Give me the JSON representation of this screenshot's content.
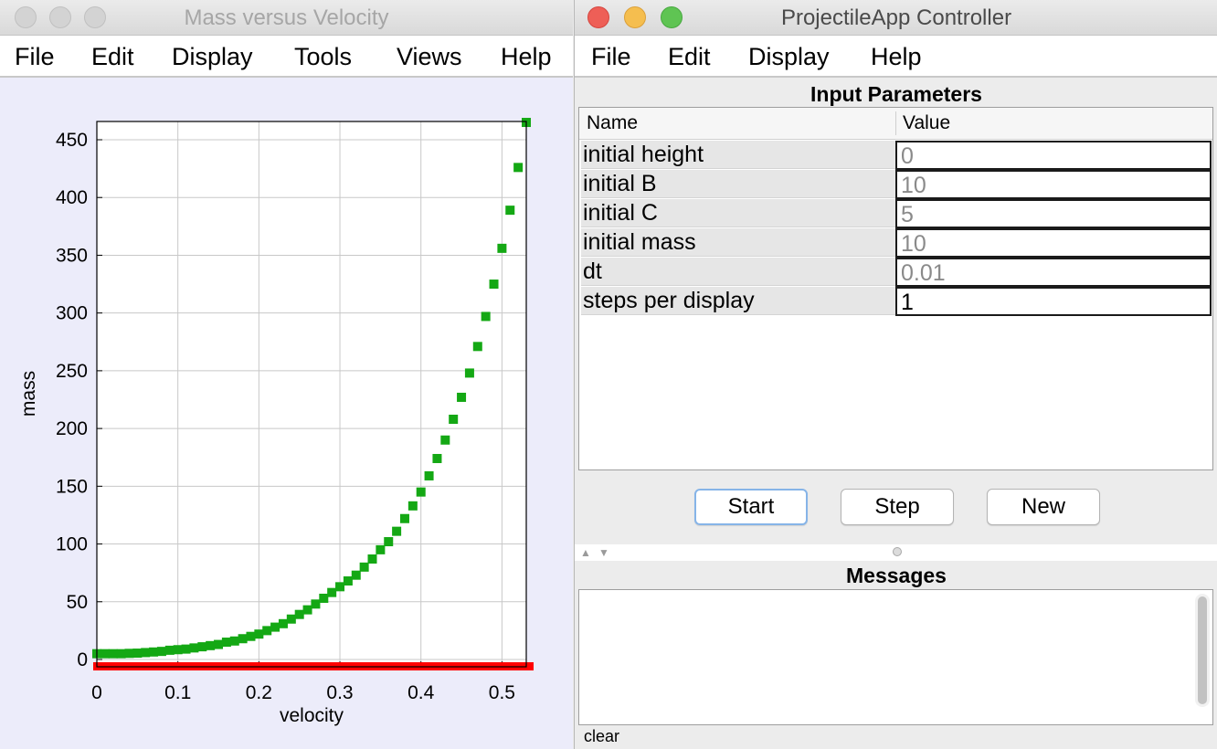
{
  "plot_window": {
    "title": "Mass versus Velocity",
    "menu": [
      "File",
      "Edit",
      "Display",
      "Tools",
      "Views",
      "Help"
    ]
  },
  "controller_window": {
    "title": "ProjectileApp Controller",
    "menu": [
      "File",
      "Edit",
      "Display",
      "Help"
    ],
    "input_panel_title": "Input Parameters",
    "table_headers": {
      "name": "Name",
      "value": "Value"
    },
    "parameters": [
      {
        "name": "initial height",
        "value": "0",
        "editable": false
      },
      {
        "name": "initial B",
        "value": "10",
        "editable": false
      },
      {
        "name": "initial C",
        "value": "5",
        "editable": false
      },
      {
        "name": "initial mass",
        "value": "10",
        "editable": false
      },
      {
        "name": "dt",
        "value": "0.01",
        "editable": false
      },
      {
        "name": "steps per display",
        "value": "1",
        "editable": true
      }
    ],
    "buttons": {
      "start": "Start",
      "step": "Step",
      "new": "New"
    },
    "messages_title": "Messages",
    "messages_text": "",
    "clear_label": "clear"
  },
  "chart_data": {
    "type": "scatter",
    "xlabel": "velocity",
    "ylabel": "mass",
    "xlim": [
      0,
      0.53
    ],
    "ylim": [
      -5,
      460
    ],
    "x_ticks": [
      0,
      0.1,
      0.2,
      0.3,
      0.4,
      0.5
    ],
    "x_tick_labels": [
      "0",
      "0.1",
      "0.2",
      "0.3",
      "0.4",
      "0.5"
    ],
    "y_ticks": [
      0,
      50,
      100,
      150,
      200,
      250,
      300,
      350,
      400,
      450
    ],
    "y_tick_labels": [
      "0",
      "50",
      "100",
      "150",
      "200",
      "250",
      "300",
      "350",
      "400",
      "450"
    ],
    "grid": true,
    "colors": {
      "mass_series": "#14a814",
      "zero_series": "#ff0000",
      "background": "#ececfa"
    },
    "series": [
      {
        "color": "#14a814",
        "x": [
          0,
          0.01,
          0.02,
          0.03,
          0.04,
          0.05,
          0.06,
          0.07,
          0.08,
          0.09,
          0.1,
          0.11,
          0.12,
          0.13,
          0.14,
          0.15,
          0.16,
          0.17,
          0.18,
          0.19,
          0.2,
          0.21,
          0.22,
          0.23,
          0.24,
          0.25,
          0.26,
          0.27,
          0.28,
          0.29,
          0.3,
          0.31,
          0.32,
          0.33,
          0.34,
          0.35,
          0.36,
          0.37,
          0.38,
          0.39,
          0.4,
          0.41,
          0.42,
          0.43,
          0.44,
          0.45,
          0.46,
          0.47,
          0.48,
          0.49,
          0.5,
          0.51,
          0.52,
          0.53
        ],
        "y": [
          5,
          5,
          5,
          5,
          5.3,
          5.5,
          6,
          6.5,
          7,
          8,
          8.5,
          9,
          10,
          11,
          12,
          13,
          15,
          16,
          18,
          20,
          22,
          25,
          28,
          31,
          35,
          39,
          43,
          48,
          53,
          58,
          63,
          68,
          73,
          80,
          87,
          95,
          102,
          111,
          122,
          133,
          145,
          159,
          174,
          190,
          208,
          227,
          248,
          271,
          297,
          325,
          356,
          389,
          426,
          465
        ]
      },
      {
        "color": "#ff0000",
        "x": [
          0,
          0.53
        ],
        "y": [
          -5,
          -5
        ],
        "style": "band"
      }
    ]
  }
}
